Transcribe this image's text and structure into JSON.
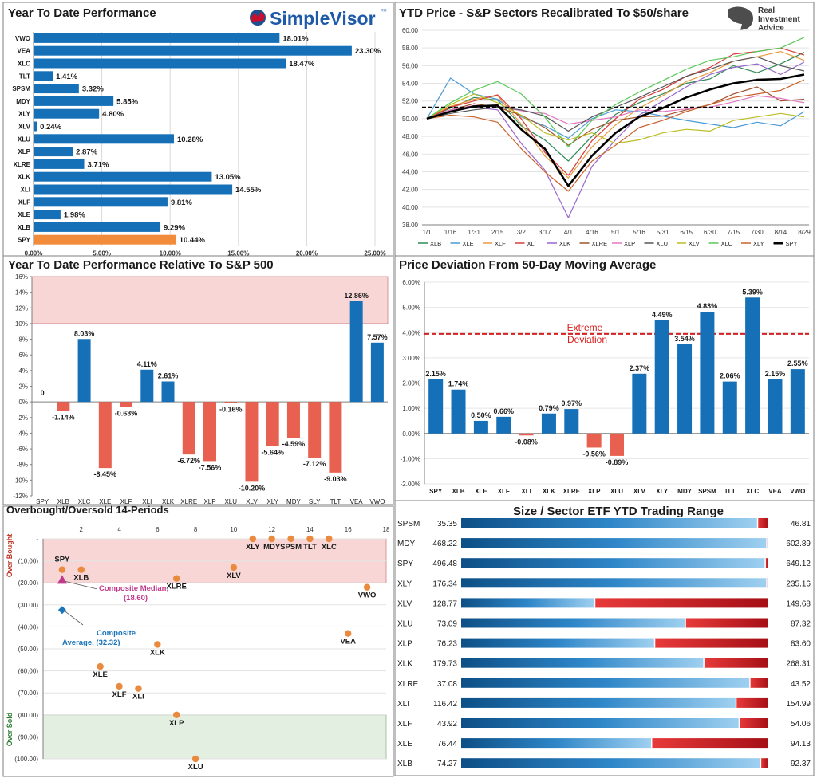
{
  "colors": {
    "bar_blue": "#1570b8",
    "spy_orange": "#f28c3a",
    "neg_red": "#e8604f",
    "band_pink": "#f8d6d6",
    "band_green": "#e3efe0",
    "dev_red": "#d81e1e",
    "scatter_orange": "#ea8a3e",
    "median_pink": "#c0398c",
    "avg_blue": "#1b75bb",
    "grid": "#bfbfbf"
  },
  "logos": {
    "simplevisor": "SimpleVisor",
    "simplevisor_tm": "™",
    "ria_line1": "Real",
    "ria_line2": "Investment",
    "ria_line3": "Advice"
  },
  "chart_data": [
    {
      "id": "ytd_performance",
      "type": "bar",
      "orientation": "horizontal",
      "title": "Year To Date Performance",
      "categories": [
        "VWO",
        "VEA",
        "XLC",
        "TLT",
        "SPSM",
        "MDY",
        "XLY",
        "XLV",
        "XLU",
        "XLP",
        "XLRE",
        "XLK",
        "XLI",
        "XLF",
        "XLE",
        "XLB",
        "SPY"
      ],
      "values": [
        18.01,
        23.3,
        18.47,
        1.41,
        3.32,
        5.85,
        4.8,
        0.24,
        10.28,
        2.87,
        3.71,
        13.05,
        14.55,
        9.81,
        1.98,
        9.29,
        10.44
      ],
      "labels": [
        "18.01%",
        "23.30%",
        "18.47%",
        "1.41%",
        "3.32%",
        "5.85%",
        "4.80%",
        "0.24%",
        "10.28%",
        "2.87%",
        "3.71%",
        "13.05%",
        "14.55%",
        "9.81%",
        "1.98%",
        "9.29%",
        "10.44%"
      ],
      "highlight": "SPY",
      "xlim": [
        0,
        25
      ],
      "xticks": [
        "0.00%",
        "5.00%",
        "10.00%",
        "15.00%",
        "20.00%",
        "25.00%"
      ]
    },
    {
      "id": "ytd_price_sectors",
      "type": "line",
      "title": "YTD Price - S&P Sectors Recalibrated To $50/share",
      "xlabels": [
        "1/1",
        "1/16",
        "1/31",
        "2/15",
        "3/2",
        "3/17",
        "4/1",
        "4/16",
        "5/1",
        "5/16",
        "5/31",
        "6/15",
        "6/30",
        "7/15",
        "7/30",
        "8/14",
        "8/29"
      ],
      "ylim": [
        38,
        60
      ],
      "yticks": [
        "38.00",
        "40.00",
        "42.00",
        "44.00",
        "46.00",
        "48.00",
        "50.00",
        "52.00",
        "54.00",
        "56.00",
        "58.00",
        "60.00"
      ],
      "reference_line": 51.3,
      "legend_position": "bottom",
      "series": [
        {
          "name": "XLB",
          "color": "#2e8b57",
          "values": [
            50,
            51.2,
            52.4,
            52.1,
            49.2,
            47.6,
            45.2,
            48.0,
            50.5,
            51.8,
            52.8,
            54.0,
            54.5,
            56.0,
            55.2,
            56.2,
            57.5
          ]
        },
        {
          "name": "XLE",
          "color": "#4a9bd6",
          "values": [
            50,
            54.6,
            52.8,
            52.2,
            50.2,
            49.2,
            47.8,
            50.0,
            51.0,
            50.8,
            50.3,
            49.8,
            49.4,
            49.0,
            49.6,
            49.2,
            50.8
          ]
        },
        {
          "name": "XLF",
          "color": "#ea9a3e",
          "values": [
            50,
            51.4,
            52.2,
            52.6,
            49.4,
            45.8,
            43.3,
            46.8,
            49.3,
            51.2,
            52.6,
            54.2,
            55.2,
            56.5,
            57.0,
            57.6,
            56.6
          ]
        },
        {
          "name": "XLI",
          "color": "#d83a3a",
          "values": [
            50,
            51.3,
            52.0,
            52.7,
            50.0,
            46.2,
            43.6,
            47.5,
            50.0,
            52.2,
            53.3,
            54.8,
            55.8,
            57.3,
            57.6,
            58.0,
            57.2
          ]
        },
        {
          "name": "XLK",
          "color": "#9966cc",
          "values": [
            50,
            50.8,
            51.3,
            51.0,
            47.2,
            44.2,
            38.8,
            44.6,
            47.6,
            50.4,
            52.0,
            53.6,
            55.0,
            55.8,
            56.2,
            55.0,
            56.4
          ]
        },
        {
          "name": "XLRE",
          "color": "#a0522d",
          "values": [
            50,
            51.0,
            51.7,
            51.3,
            50.4,
            49.0,
            47.0,
            48.8,
            49.8,
            50.2,
            50.3,
            51.0,
            51.6,
            52.8,
            53.6,
            52.0,
            52.2
          ]
        },
        {
          "name": "XLP",
          "color": "#e377c2",
          "values": [
            50,
            51.0,
            51.5,
            51.4,
            50.9,
            50.6,
            49.4,
            49.8,
            50.2,
            51.0,
            50.8,
            51.1,
            51.3,
            51.9,
            52.6,
            52.3,
            51.8
          ]
        },
        {
          "name": "XLU",
          "color": "#555555",
          "values": [
            50,
            50.6,
            51.0,
            51.3,
            51.0,
            50.3,
            48.6,
            50.2,
            51.3,
            52.4,
            53.6,
            54.8,
            55.6,
            56.5,
            57.0,
            56.0,
            55.4
          ]
        },
        {
          "name": "XLV",
          "color": "#bcbd22",
          "values": [
            50,
            51.6,
            52.8,
            51.8,
            50.4,
            48.4,
            47.6,
            48.4,
            47.2,
            47.6,
            48.4,
            48.8,
            48.6,
            49.8,
            50.2,
            50.6,
            50.2
          ]
        },
        {
          "name": "XLC",
          "color": "#5bc85b",
          "values": [
            50,
            51.8,
            53.2,
            54.2,
            52.8,
            50.2,
            46.8,
            49.8,
            51.6,
            53.0,
            54.3,
            55.6,
            56.6,
            57.0,
            57.6,
            58.0,
            59.2
          ]
        },
        {
          "name": "XLY",
          "color": "#c9602b",
          "values": [
            50,
            50.4,
            50.2,
            49.6,
            46.6,
            44.0,
            41.8,
            45.2,
            47.0,
            49.0,
            49.8,
            50.8,
            51.6,
            52.4,
            52.8,
            53.2,
            54.4
          ]
        },
        {
          "name": "SPY",
          "color": "#000000",
          "values": [
            50,
            50.8,
            51.4,
            51.5,
            48.8,
            46.6,
            42.4,
            45.8,
            48.4,
            50.2,
            51.2,
            52.4,
            53.3,
            54.0,
            54.4,
            54.5,
            55.0
          ]
        }
      ]
    },
    {
      "id": "relative_to_spx",
      "type": "bar",
      "title": "Year To Date Performance Relative To S&P 500",
      "categories": [
        "SPY",
        "XLB",
        "XLC",
        "XLE",
        "XLF",
        "XLI",
        "XLK",
        "XLRE",
        "XLP",
        "XLU",
        "XLV",
        "XLY",
        "MDY",
        "SLY",
        "TLT",
        "VEA",
        "VWO"
      ],
      "values": [
        0,
        -1.14,
        8.03,
        -8.45,
        -0.63,
        4.11,
        2.61,
        -6.72,
        -7.56,
        -0.16,
        -10.2,
        -5.64,
        -4.59,
        -7.12,
        -9.03,
        12.86,
        7.57
      ],
      "labels": [
        "0",
        "-1.14%",
        "8.03%",
        "-8.45%",
        "-0.63%",
        "4.11%",
        "2.61%",
        "-6.72%",
        "-7.56%",
        "-0.16%",
        "-10.20%",
        "-5.64%",
        "-4.59%",
        "-7.12%",
        "-9.03%",
        "12.86%",
        "7.57%"
      ],
      "ylim": [
        -12,
        16
      ],
      "yticks": [
        "-12%",
        "-10%",
        "-8%",
        "-6%",
        "-4%",
        "-2%",
        "0%",
        "2%",
        "4%",
        "6%",
        "8%",
        "10%",
        "12%",
        "14%",
        "16%"
      ],
      "band_from": 10
    },
    {
      "id": "deviation_50dma",
      "type": "bar",
      "title": "Price Deviation From 50-Day Moving Average",
      "categories": [
        "SPY",
        "XLB",
        "XLE",
        "XLF",
        "XLI",
        "XLK",
        "XLRE",
        "XLP",
        "XLU",
        "XLV",
        "XLY",
        "MDY",
        "SPSM",
        "TLT",
        "XLC",
        "VEA",
        "VWO"
      ],
      "values": [
        2.15,
        1.74,
        0.5,
        0.66,
        -0.08,
        0.79,
        0.97,
        -0.56,
        -0.89,
        2.37,
        4.49,
        3.54,
        4.83,
        2.06,
        5.39,
        2.15,
        2.55
      ],
      "labels": [
        "2.15%",
        "1.74%",
        "0.50%",
        "0.66%",
        "-0.08%",
        "0.79%",
        "0.97%",
        "-0.56%",
        "-0.89%",
        "2.37%",
        "4.49%",
        "3.54%",
        "4.83%",
        "2.06%",
        "5.39%",
        "2.15%",
        "2.55%"
      ],
      "ylim": [
        -2,
        6
      ],
      "yticks": [
        "-2.00%",
        "-1.00%",
        "0.00%",
        "1.00%",
        "2.00%",
        "3.00%",
        "4.00%",
        "5.00%",
        "6.00%"
      ],
      "threshold": 3.95,
      "threshold_label_1": "Extreme",
      "threshold_label_2": "Deviation"
    },
    {
      "id": "overbought_oversold",
      "type": "scatter",
      "title": "Overbought/Oversold 14-Periods",
      "xlim": [
        0,
        18
      ],
      "xticks": [
        "2",
        "4",
        "6",
        "8",
        "10",
        "12",
        "14",
        "16",
        "18"
      ],
      "ylim": [
        0,
        100
      ],
      "yticks": [
        "-",
        "(10.00)",
        "(20.00)",
        "(30.00)",
        "(40.00)",
        "(50.00)",
        "(60.00)",
        "(70.00)",
        "(80.00)",
        "(90.00)",
        "(100.00)"
      ],
      "overbought_label": "Over Bought",
      "oversold_label": "Over Sold",
      "points": [
        {
          "label": "SPY",
          "x": 1,
          "y": 14
        },
        {
          "label": "XLB",
          "x": 2,
          "y": 14
        },
        {
          "label": "XLRE",
          "x": 7,
          "y": 18
        },
        {
          "label": "XLV",
          "x": 10,
          "y": 13
        },
        {
          "label": "XLY",
          "x": 11,
          "y": 0
        },
        {
          "label": "MDY",
          "x": 12,
          "y": 0
        },
        {
          "label": "SPSM",
          "x": 13,
          "y": 0
        },
        {
          "label": "TLT",
          "x": 14,
          "y": 0
        },
        {
          "label": "XLC",
          "x": 15,
          "y": 0
        },
        {
          "label": "VWO",
          "x": 17,
          "y": 22
        },
        {
          "label": "VEA",
          "x": 16,
          "y": 43
        },
        {
          "label": "XLK",
          "x": 6,
          "y": 48
        },
        {
          "label": "XLE",
          "x": 3,
          "y": 58
        },
        {
          "label": "XLF",
          "x": 4,
          "y": 67
        },
        {
          "label": "XLI",
          "x": 5,
          "y": 68
        },
        {
          "label": "XLP",
          "x": 7,
          "y": 80
        },
        {
          "label": "XLU",
          "x": 8,
          "y": 100
        }
      ],
      "median": {
        "x": 1,
        "y": 18.6,
        "label": "Composite Median,",
        "value": "(18.60)"
      },
      "average": {
        "x": 1,
        "y": 32.32,
        "label": "Composite",
        "value": "Average, (32.32)"
      }
    },
    {
      "id": "trading_range",
      "type": "bar",
      "title": "Size / Sector ETF YTD Trading Range",
      "rows": [
        {
          "name": "SPSM",
          "low": "35.35",
          "high": "46.81",
          "position": 0.965
        },
        {
          "name": "MDY",
          "low": "468.22",
          "high": "602.89",
          "position": 0.995
        },
        {
          "name": "SPY",
          "low": "496.48",
          "high": "649.12",
          "position": 0.99
        },
        {
          "name": "XLY",
          "low": "176.34",
          "high": "235.16",
          "position": 0.995
        },
        {
          "name": "XLV",
          "low": "128.77",
          "high": "149.68",
          "position": 0.435
        },
        {
          "name": "XLU",
          "low": "73.09",
          "high": "87.32",
          "position": 0.73
        },
        {
          "name": "XLP",
          "low": "76.23",
          "high": "83.60",
          "position": 0.63
        },
        {
          "name": "XLK",
          "low": "179.73",
          "high": "268.31",
          "position": 0.79
        },
        {
          "name": "XLRE",
          "low": "37.08",
          "high": "43.52",
          "position": 0.94
        },
        {
          "name": "XLI",
          "low": "116.42",
          "high": "154.99",
          "position": 0.895
        },
        {
          "name": "XLF",
          "low": "43.92",
          "high": "54.06",
          "position": 0.905
        },
        {
          "name": "XLE",
          "low": "76.44",
          "high": "94.13",
          "position": 0.62
        },
        {
          "name": "XLB",
          "low": "74.27",
          "high": "92.37",
          "position": 0.975
        }
      ]
    }
  ]
}
